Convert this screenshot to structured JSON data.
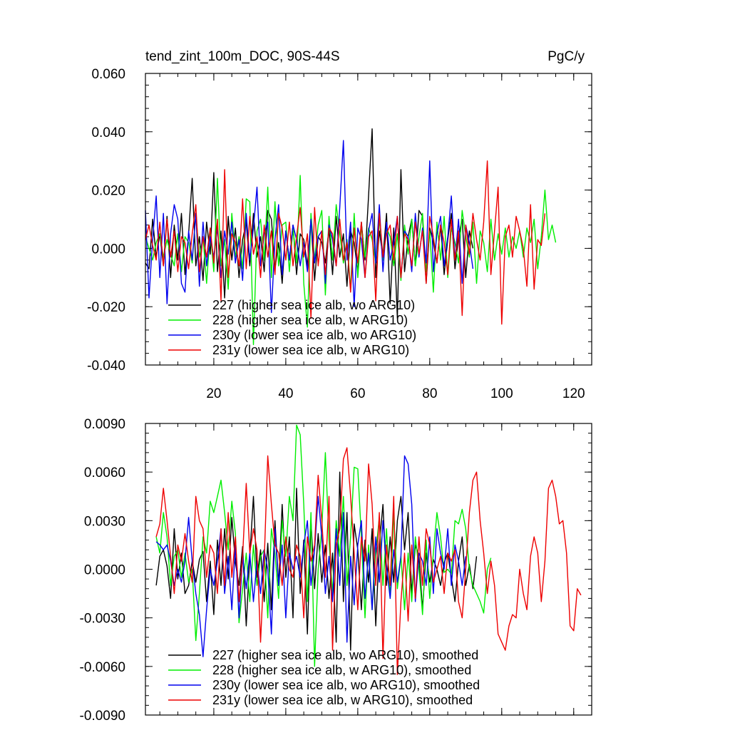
{
  "chart_data": [
    {
      "type": "line",
      "title_left": "tend_zint_100m_DOC, 90S-44S",
      "title_right": "PgC/y",
      "xlim": [
        1,
        125
      ],
      "ylim": [
        -0.04,
        0.06
      ],
      "x_ticks": [
        20,
        40,
        60,
        80,
        100,
        120
      ],
      "y_ticks": [
        -0.04,
        -0.02,
        0.0,
        0.02,
        0.04,
        0.06
      ],
      "x_tick_labels": [
        "20",
        "40",
        "60",
        "80",
        "100",
        "120"
      ],
      "y_tick_labels": [
        "-0.040",
        "-0.020",
        "0.000",
        "0.020",
        "0.040",
        "0.060"
      ],
      "legend_position": "lower-left",
      "series": [
        {
          "name": "227 (higher sea ice alb, wo ARG10)",
          "color": "#000000",
          "x_start": 1,
          "values": [
            -0.005,
            -0.007,
            0.01,
            -0.003,
            0.005,
            -0.006,
            0.011,
            -0.01,
            0.008,
            -0.004,
            0.012,
            -0.009,
            0.005,
            0.024,
            -0.006,
            0.004,
            -0.011,
            0.009,
            -0.002,
            0.026,
            -0.008,
            0.006,
            -0.017,
            0.011,
            -0.004,
            0.007,
            -0.01,
            0.003,
            0.009,
            -0.006,
            0.012,
            -0.003,
            0.004,
            -0.008,
            0.013,
            0.01,
            -0.007,
            0.002,
            -0.012,
            0.006,
            -0.004,
            0.008,
            -0.009,
            0.005,
            0.003,
            -0.006,
            0.01,
            -0.011,
            0.004,
            0.002,
            -0.005,
            0.007,
            -0.009,
            0.011,
            -0.003,
            0.005,
            -0.013,
            0.006,
            0.002,
            -0.008,
            0.009,
            -0.004,
            0.018,
            0.041,
            -0.01,
            0.006,
            -0.003,
            0.012,
            -0.019,
            0.007,
            -0.024,
            0.027,
            -0.008,
            0.004,
            0.01,
            -0.006,
            0.013,
            0.011,
            -0.012,
            0.007,
            0.002,
            -0.005,
            0.008,
            -0.009,
            0.003,
            0.012,
            -0.007,
            0.004,
            0.01,
            -0.01,
            0.006,
            0.0
          ]
        },
        {
          "name": "228 (higher sea ice alb, w ARG10)",
          "color": "#00ee00",
          "x_start": 1,
          "values": [
            0.004,
            0.0,
            -0.004,
            0.002,
            0.005,
            -0.003,
            0.003,
            -0.002,
            -0.006,
            0.005,
            -0.008,
            0.004,
            0.002,
            -0.005,
            0.012,
            -0.003,
            0.004,
            -0.012,
            0.006,
            -0.008,
            0.024,
            -0.006,
            0.003,
            -0.014,
            0.012,
            -0.003,
            0.004,
            -0.007,
            0.017,
            0.016,
            -0.033,
            0.006,
            0.01,
            -0.004,
            0.021,
            -0.01,
            0.016,
            -0.006,
            0.008,
            0.009,
            -0.008,
            0.007,
            -0.005,
            0.025,
            -0.012,
            -0.027,
            0.012,
            -0.004,
            0.008,
            0.013,
            -0.016,
            0.011,
            -0.004,
            0.015,
            0.005,
            -0.005,
            0.003,
            -0.014,
            0.012,
            -0.01,
            0.008,
            -0.003,
            0.007,
            0.003,
            -0.005,
            0.01,
            -0.004,
            0.007,
            0.004,
            -0.006,
            0.005,
            -0.011,
            0.008,
            -0.002,
            0.01,
            -0.006,
            0.004,
            0.012,
            -0.008,
            0.006,
            -0.015,
            0.009,
            -0.004,
            0.011,
            -0.01,
            0.007,
            0.002,
            -0.005,
            0.013,
            0.004,
            -0.003,
            0.009,
            -0.012,
            0.006,
            0.002,
            -0.008,
            0.01,
            -0.004,
            0.005,
            -0.002,
            0.007,
            -0.003,
            0.004,
            0.0,
            0.006,
            -0.003,
            0.007,
            0.002,
            0.01,
            -0.007,
            0.004,
            0.02,
            0.003,
            0.008,
            0.002
          ]
        },
        {
          "name": "230y (lower sea ice alb, wo ARG10)",
          "color": "#0000ee",
          "x_start": 1,
          "values": [
            0.013,
            -0.017,
            0.003,
            0.018,
            -0.01,
            0.012,
            -0.019,
            0.005,
            0.015,
            0.01,
            -0.012,
            -0.015,
            0.006,
            -0.004,
            0.012,
            -0.013,
            0.009,
            -0.006,
            0.004,
            -0.003,
            0.007,
            -0.01,
            0.006,
            -0.002,
            0.009,
            -0.005,
            0.003,
            -0.011,
            0.012,
            -0.004,
            0.007,
            0.021,
            -0.006,
            0.005,
            0.009,
            -0.022,
            0.003,
            0.015,
            -0.009,
            0.006,
            -0.004,
            0.008,
            0.003,
            -0.006,
            0.002,
            -0.008,
            0.01,
            -0.005,
            0.004,
            0.006,
            -0.012,
            0.008,
            0.003,
            -0.006,
            0.014,
            0.037,
            -0.004,
            0.009,
            -0.02,
            0.007,
            0.003,
            -0.01,
            0.006,
            0.012,
            -0.005,
            0.015,
            -0.008,
            0.009,
            -0.004,
            0.002,
            0.011,
            -0.01,
            0.006,
            0.004,
            -0.008,
            0.012,
            -0.003,
            0.007,
            -0.005,
            0.03,
            -0.008,
            0.005,
            0.011,
            -0.006,
            0.004,
            0.018,
            -0.004,
            0.01,
            -0.012,
            0.008,
            0.002,
            -0.007
          ]
        },
        {
          "name": "231y (lower sea ice alb, w ARG10)",
          "color": "#ee0000",
          "x_start": 1,
          "values": [
            0.003,
            0.008,
            0.001,
            -0.004,
            0.009,
            -0.006,
            0.01,
            -0.003,
            0.006,
            -0.008,
            0.004,
            0.002,
            -0.007,
            0.005,
            0.015,
            -0.008,
            0.004,
            -0.003,
            0.007,
            -0.005,
            0.01,
            -0.018,
            0.027,
            -0.01,
            0.005,
            0.002,
            -0.006,
            0.017,
            -0.007,
            0.011,
            -0.002,
            0.004,
            -0.01,
            0.008,
            -0.003,
            0.006,
            -0.009,
            0.012,
            0.007,
            -0.004,
            0.009,
            -0.006,
            0.004,
            0.014,
            -0.003,
            0.005,
            -0.024,
            0.014,
            -0.006,
            0.006,
            -0.009,
            0.007,
            0.005,
            -0.006,
            0.01,
            -0.004,
            0.002,
            -0.015,
            0.007,
            -0.005,
            0.009,
            -0.01,
            0.004,
            0.006,
            -0.018,
            0.012,
            -0.003,
            0.005,
            0.008,
            -0.004,
            0.011,
            -0.01,
            0.005,
            0.003,
            -0.006,
            0.009,
            -0.002,
            0.006,
            -0.012,
            0.011,
            0.004,
            -0.005,
            0.008,
            0.002,
            -0.009,
            0.01,
            -0.004,
            0.006,
            -0.023,
            0.008,
            -0.002,
            0.012,
            0.003,
            -0.004,
            0.009,
            0.03,
            -0.009,
            0.006,
            0.021,
            -0.026,
            0.004,
            0.008,
            -0.003,
            0.011,
            0.006,
            0.0,
            -0.013,
            0.015,
            -0.014,
            0.003,
            0.001,
            0.012
          ]
        }
      ]
    },
    {
      "type": "line",
      "xlim": [
        1,
        125
      ],
      "ylim": [
        -0.009,
        0.009
      ],
      "x_ticks": [
        20,
        40,
        60,
        80,
        100,
        120
      ],
      "y_ticks": [
        -0.009,
        -0.006,
        -0.003,
        0.0,
        0.003,
        0.006,
        0.009
      ],
      "y_tick_labels": [
        "-0.0090",
        "-0.0060",
        "-0.0030",
        "0.0000",
        "0.0030",
        "0.0060",
        "0.0090"
      ],
      "legend_position": "lower-left",
      "series": [
        {
          "name": "227 (higher sea ice alb, wo ARG10), smoothed",
          "color": "#000000",
          "x_start": 4,
          "values": [
            -0.001,
            0.0008,
            0.0012,
            0.0002,
            -0.0018,
            0.0025,
            -0.0006,
            0.001,
            -0.0015,
            -0.001,
            0.0005,
            -0.0008,
            0.0006,
            0.0011,
            -0.002,
            0.0005,
            -0.0028,
            0.0018,
            -0.001,
            0.0025,
            -0.0006,
            0.0032,
            0.0004,
            -0.001,
            0.0014,
            -0.0035,
            0.0008,
            0.0045,
            -0.0005,
            0.0012,
            -0.002,
            0.0016,
            -0.0025,
            0.003,
            -0.001,
            0.004,
            -0.0005,
            0.002,
            -0.003,
            0.005,
            -0.0015,
            0.0018,
            -0.004,
            0.003,
            -0.0012,
            0.0022,
            -0.0008,
            0.0015,
            -0.0018,
            0.001,
            -0.0045,
            0.006,
            -0.002,
            0.0035,
            -0.005,
            0.0028,
            0.0012,
            -0.0025,
            0.0018,
            -0.0008,
            0.0025,
            -0.0035,
            0.0015,
            0.004,
            -0.001,
            0.002,
            -0.0008,
            0.003,
            0.0045,
            0.0012,
            0.0035,
            -0.0015,
            0.0015,
            0.0008,
            -0.0025,
            0.001,
            -0.0008,
            0.0006,
            0.0,
            -0.001,
            0.0004,
            0.001,
            -0.0005,
            -0.002,
            0.0005,
            0.002,
            -0.001,
            0.0003,
            -0.0012,
            0.0008
          ]
        },
        {
          "name": "228 (higher sea ice alb, w ARG10), smoothed",
          "color": "#00ee00",
          "x_start": 4,
          "values": [
            0.002,
            0.001,
            0.0035,
            0.002,
            -0.001,
            0.0008,
            0.0012,
            -0.0005,
            0.001,
            -0.0008,
            0.0,
            -0.0044,
            -0.0015,
            0.002,
            0.001,
            0.0042,
            0.0035,
            0.0045,
            0.0055,
            0.0035,
            0.0012,
            0.0042,
            0.0022,
            -0.0033,
            -0.0012,
            0.001,
            -0.002,
            0.0015,
            -0.001,
            0.0008,
            0.0012,
            -0.003,
            0.0025,
            0.001,
            -0.0018,
            0.003,
            0.0008,
            0.0045,
            0.003,
            0.0089,
            0.0083,
            0.004,
            -0.002,
            0.0035,
            -0.006,
            0.0,
            0.0025,
            0.0072,
            0.0018,
            -0.0015,
            0.003,
            0.0008,
            0.0045,
            -0.001,
            0.002,
            0.0063,
            0.0062,
            0.002,
            -0.003,
            0.0015,
            -0.0025,
            0.001,
            0.0032,
            -0.001,
            0.0025,
            -0.0018,
            0.0035,
            -0.0012,
            0.0008,
            -0.0025,
            0.001,
            -0.002,
            0.002,
            0.0,
            -0.0028,
            0.0018,
            -0.0018,
            0.001,
            0.0035,
            0.002,
            -0.0002,
            0.0,
            -0.0003,
            0.003,
            0.0028,
            0.0037,
            0.0025,
            0.0,
            -0.001,
            -0.0015,
            -0.002,
            -0.0027,
            0.0,
            0.0007
          ]
        },
        {
          "name": "230y (lower sea ice alb, wo ARG10), smoothed",
          "color": "#0000ee",
          "x_start": 4,
          "values": [
            0.0017,
            0.0015,
            0.0012,
            0.0015,
            0.0005,
            -0.001,
            0.0,
            -0.0008,
            0.0005,
            0.0032,
            0.0005,
            -0.0015,
            -0.0028,
            -0.0054,
            -0.0025,
            0.0,
            -0.001,
            0.0005,
            0.0025,
            -0.0015,
            0.0008,
            -0.0025,
            0.0015,
            -0.003,
            0.0008,
            -0.0012,
            0.001,
            -0.002,
            0.0005,
            -0.0015,
            0.0012,
            0.0,
            -0.004,
            0.0025,
            -0.001,
            0.0015,
            -0.003,
            0.001,
            0.0,
            0.0008,
            -0.0005,
            0.0015,
            0.003,
            -0.001,
            0.0012,
            0.0045,
            0.002,
            -0.0015,
            0.0008,
            -0.002,
            0.0025,
            -0.001,
            0.0035,
            -0.0045,
            0.0008,
            -0.0022,
            0.0015,
            0.003,
            -0.0018,
            0.001,
            -0.0025,
            0.002,
            -0.0008,
            0.003,
            0.0002,
            -0.0018,
            0.0012,
            -0.0008,
            0.0008,
            0.007,
            0.0065,
            0.004,
            -0.002,
            0.001,
            0.0005,
            -0.001,
            0.002,
            -0.0015,
            0.0025,
            0.001,
            0.0,
            0.0025,
            -0.001,
            0.0015,
            0.0005,
            -0.001,
            0.0008
          ]
        },
        {
          "name": "231y (lower sea ice alb, w ARG10), smoothed",
          "color": "#ee0000",
          "x_start": 4,
          "values": [
            0.002,
            0.0028,
            0.005,
            0.003,
            0.0008,
            -0.0015,
            0.0015,
            0.0005,
            0.0022,
            0.0005,
            -0.0008,
            0.0045,
            0.003,
            0.0025,
            -0.0005,
            0.0015,
            0.001,
            -0.0015,
            0.0025,
            -0.001,
            0.0035,
            -0.0005,
            0.002,
            -0.002,
            0.0008,
            0.0053,
            0.001,
            0.0025,
            0.0012,
            -0.0045,
            0.0005,
            0.007,
            0.004,
            0.0015,
            0.001,
            -0.001,
            0.002,
            0.0,
            -0.0005,
            0.0015,
            0.0008,
            -0.003,
            0.002,
            0.0005,
            0.0015,
            0.0058,
            0.003,
            -0.0005,
            0.0045,
            -0.005,
            0.0015,
            0.0025,
            0.0068,
            0.0075,
            0.0045,
            0.001,
            -0.0025,
            0.002,
            0.0005,
            0.0065,
            0.004,
            -0.001,
            0.0035,
            -0.0055,
            0.0015,
            -0.001,
            0.0045,
            -0.0065,
            -0.002,
            0.001,
            -0.0032,
            0.0015,
            -0.0018,
            0.002,
            -0.001,
            0.0025,
            0.0015,
            -0.0008,
            0.0,
            0.0008,
            -0.0015,
            0.001,
            0.0005,
            0.0012,
            -0.002,
            -0.003,
            0.0,
            0.0035,
            0.0055,
            0.006,
            0.003,
            0.001,
            -0.0015,
            0.0005,
            -0.001,
            -0.004,
            -0.0045,
            -0.005,
            -0.0035,
            -0.0028,
            -0.003,
            0.0,
            -0.0015,
            -0.0025,
            0.0008,
            0.002,
            0.001,
            -0.002,
            0.0005,
            0.005,
            0.0055,
            0.0045,
            0.0028,
            0.003,
            0.001,
            -0.0035,
            -0.0038,
            -0.0012,
            -0.0016
          ]
        }
      ]
    }
  ]
}
